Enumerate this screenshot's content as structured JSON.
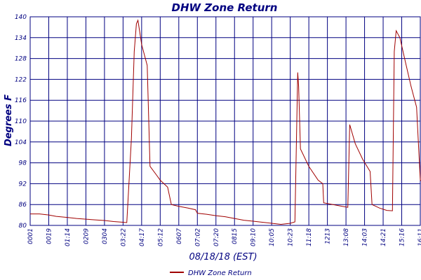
{
  "chart_data": {
    "type": "line",
    "title": "DHW Zone Return",
    "xlabel": "08/18/18 (EST)",
    "ylabel": "Degrees F",
    "ylim": [
      80,
      140
    ],
    "yticks": [
      80,
      86,
      92,
      98,
      104,
      110,
      116,
      122,
      128,
      134,
      140
    ],
    "x_tick_labels": [
      "0001",
      "0019",
      "01:14",
      "0209",
      "0304",
      "03:22",
      "04:17",
      "05:12",
      "0607",
      "07:02",
      "07:20",
      "0815",
      "09:10",
      "10:05",
      "10:23",
      "11:18",
      "1213",
      "13:08",
      "14:03",
      "14:21",
      "15:16",
      "16:11"
    ],
    "grid": true,
    "legend_position": "bottom-left",
    "series": [
      {
        "name": "DHW Zone Return",
        "color": "#a00000",
        "points": [
          [
            0,
            83.3
          ],
          [
            0.5,
            83.3
          ],
          [
            1,
            83.0
          ],
          [
            1.4,
            82.6
          ],
          [
            2,
            82.3
          ],
          [
            2.5,
            82.0
          ],
          [
            3,
            81.8
          ],
          [
            3.5,
            81.6
          ],
          [
            4,
            81.4
          ],
          [
            4.5,
            81.1
          ],
          [
            5,
            80.9
          ],
          [
            5.2,
            80.8
          ],
          [
            5.45,
            105.0
          ],
          [
            5.6,
            130.0
          ],
          [
            5.72,
            138.0
          ],
          [
            5.8,
            139.0
          ],
          [
            6.0,
            132.0
          ],
          [
            6.3,
            126.0
          ],
          [
            6.45,
            97.0
          ],
          [
            6.8,
            94.5
          ],
          [
            7.0,
            93.0
          ],
          [
            7.4,
            91.0
          ],
          [
            7.6,
            86.0
          ],
          [
            8.0,
            85.5
          ],
          [
            8.5,
            85.0
          ],
          [
            8.9,
            84.5
          ],
          [
            9.0,
            83.5
          ],
          [
            9.5,
            83.2
          ],
          [
            10.0,
            82.8
          ],
          [
            10.5,
            82.5
          ],
          [
            11.0,
            82.0
          ],
          [
            11.5,
            81.5
          ],
          [
            12.0,
            81.2
          ],
          [
            12.5,
            80.9
          ],
          [
            13.0,
            80.6
          ],
          [
            13.5,
            80.3
          ],
          [
            14.0,
            80.6
          ],
          [
            14.25,
            81.0
          ],
          [
            14.4,
            124.0
          ],
          [
            14.45,
            120.0
          ],
          [
            14.55,
            102.0
          ],
          [
            15.0,
            97.0
          ],
          [
            15.5,
            93.0
          ],
          [
            15.75,
            92.0
          ],
          [
            15.8,
            86.5
          ],
          [
            16.3,
            86.0
          ],
          [
            16.8,
            85.5
          ],
          [
            17.1,
            85.2
          ],
          [
            17.2,
            109.0
          ],
          [
            17.5,
            103.5
          ],
          [
            17.9,
            99.0
          ],
          [
            18.3,
            95.5
          ],
          [
            18.4,
            86.0
          ],
          [
            18.8,
            85.0
          ],
          [
            19.2,
            84.3
          ],
          [
            19.5,
            84.2
          ],
          [
            19.6,
            130.0
          ],
          [
            19.7,
            136.0
          ],
          [
            19.9,
            134.0
          ],
          [
            20.2,
            127.0
          ],
          [
            20.5,
            120.0
          ],
          [
            20.8,
            114.0
          ],
          [
            21.0,
            93.0
          ],
          [
            21.3,
            92.0
          ],
          [
            21.6,
            91.0
          ],
          [
            21.8,
            90.0
          ]
        ]
      }
    ]
  }
}
